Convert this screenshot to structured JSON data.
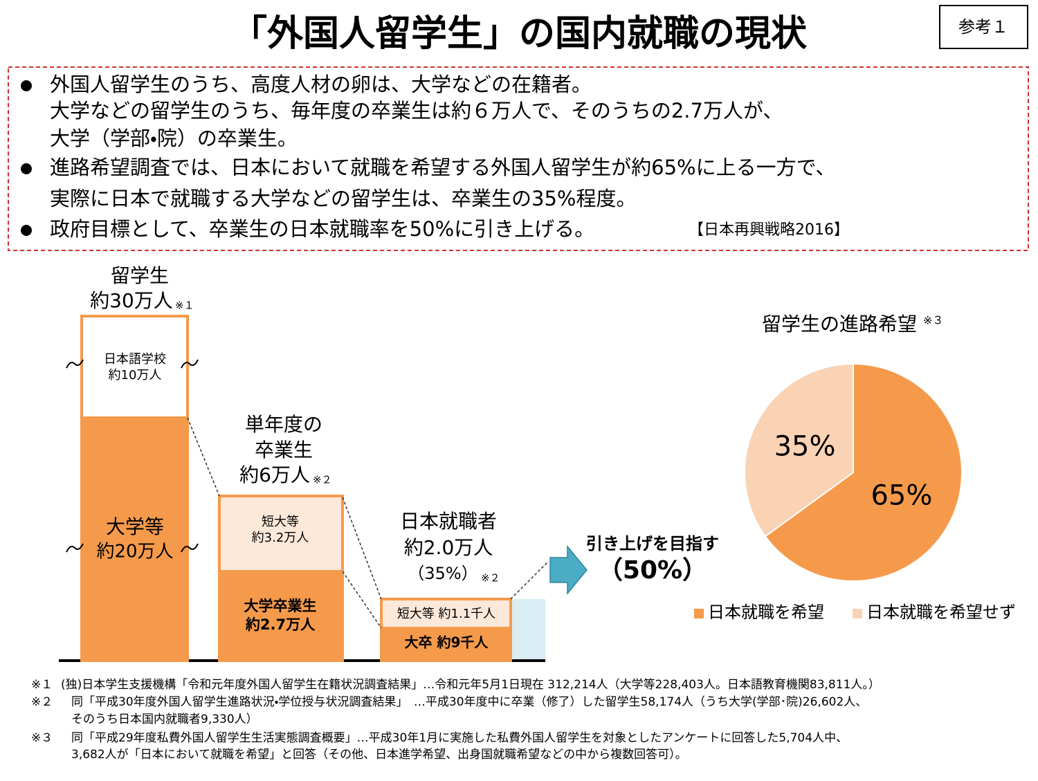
{
  "header": {
    "title": "「外国人留学生」の国内就職の現状",
    "badge": "参考１"
  },
  "summary": {
    "bullets": [
      {
        "lines": [
          "外国人留学生のうち、高度人材の卵は、大学などの在籍者。",
          "大学などの留学生のうち、毎年度の卒業生は約６万人で、そのうちの2.7万人が、",
          "大学（学部・院）の卒業生。"
        ]
      },
      {
        "lines": [
          "進路希望調査では、日本において就職を希望する外国人留学生が約65%に上る一方で、",
          "実際に日本で就職する大学などの留学生は、卒業生の35%程度。"
        ]
      },
      {
        "lines": [
          "政府目標として、卒業生の日本就職率を50%に引き上げる。"
        ],
        "source": "【日本再興戦略2016】"
      }
    ]
  },
  "diagram": {
    "columns": [
      {
        "heading": [
          "留学生",
          "約30万人"
        ],
        "note": "※１",
        "upper": [
          "日本語学校",
          "約10万人"
        ],
        "lower": [
          "大学等",
          "約20万人"
        ]
      },
      {
        "heading": [
          "単年度の",
          "卒業生",
          "約6万人"
        ],
        "note": "※２",
        "upper": [
          "短大等",
          "約3.2万人"
        ],
        "lower": [
          "大学卒業生",
          "約2.7万人"
        ]
      },
      {
        "heading": [
          "日本就職者",
          "約2.0万人"
        ],
        "share": "（35%）",
        "note": "※２",
        "upper": [
          "短大等 約1.1千人"
        ],
        "lower": [
          "大卒 約9千人"
        ]
      }
    ],
    "target": [
      "引き上げを目指す",
      "（50%）"
    ]
  },
  "chart_data": {
    "type": "pie",
    "title": "留学生の進路希望",
    "title_note": "※３",
    "categories": [
      "日本就職を希望",
      "日本就職を希望せず"
    ],
    "values": [
      65,
      35
    ],
    "value_labels": [
      "65%",
      "35%"
    ],
    "colors": [
      "#f59a4b",
      "#fad3b4"
    ]
  },
  "footnotes": [
    {
      "mark": "※１",
      "lines": [
        "(独)日本学生支援機構「令和元年度外国人留学生在籍状況調査結果」…令和元年5月1日現在 312,214人（大学等228,403人。日本語教育機関83,811人。）"
      ]
    },
    {
      "mark": "※２",
      "lines": [
        "同「平成30年度外国人留学生進路状況・学位授与状況調査結果」　…平成30年度中に卒業（修了）した留学生58,174人（うち大学(学部･院)26,602人、",
        "そのうち日本国内就職者9,330人）"
      ]
    },
    {
      "mark": "※３",
      "lines": [
        "同「平成29年度私費外国人留学生生活実態調査概要」…平成30年1月に実施した私費外国人留学生を対象としたアンケートに回答した5,704人中、",
        "3,682人が「日本において就職を希望」と回答（その他、日本進学希望、出身国就職希望などの中から複数回答可）。"
      ]
    }
  ]
}
